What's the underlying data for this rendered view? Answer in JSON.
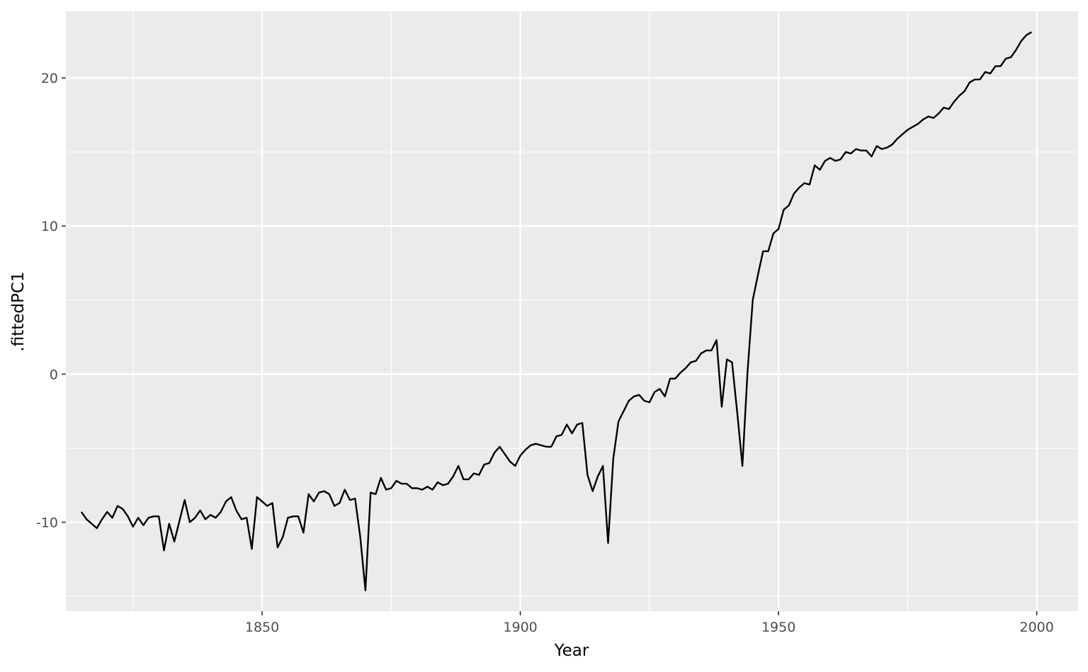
{
  "chart_data": {
    "type": "line",
    "title": "",
    "xlabel": "Year",
    "ylabel": ".fittedPC1",
    "xlim": [
      1812,
      2008
    ],
    "ylim": [
      -16,
      24.5
    ],
    "x_ticks": [
      1850,
      1900,
      1950,
      2000
    ],
    "y_ticks": [
      -10,
      0,
      10,
      20
    ],
    "x_tick_labels": [
      "1850",
      "1900",
      "1950",
      "2000"
    ],
    "y_tick_labels": [
      "-10",
      "0",
      "10",
      "20"
    ],
    "x_minor": [
      1825,
      1875,
      1925,
      1975
    ],
    "y_minor": [
      -15,
      -5,
      5,
      15
    ],
    "grid": true,
    "legend": "none",
    "colors": {
      "panel": "#ebebeb",
      "grid": "#ffffff",
      "line": "#000000",
      "tick_text": "#4d4d4d"
    },
    "series": [
      {
        "x": [
          1815,
          1816,
          1817,
          1818,
          1819,
          1820,
          1821,
          1822,
          1823,
          1824,
          1825,
          1826,
          1827,
          1828,
          1829,
          1830,
          1831,
          1832,
          1833,
          1834,
          1835,
          1836,
          1837,
          1838,
          1839,
          1840,
          1841,
          1842,
          1843,
          1844,
          1845,
          1846,
          1847,
          1848,
          1849,
          1850,
          1851,
          1852,
          1853,
          1854,
          1855,
          1856,
          1857,
          1858,
          1859,
          1860,
          1861,
          1862,
          1863,
          1864,
          1865,
          1866,
          1867,
          1868,
          1869,
          1870,
          1871,
          1872,
          1873,
          1874,
          1875,
          1876,
          1877,
          1878,
          1879,
          1880,
          1881,
          1882,
          1883,
          1884,
          1885,
          1886,
          1887,
          1888,
          1889,
          1890,
          1891,
          1892,
          1893,
          1894,
          1895,
          1896,
          1897,
          1898,
          1899,
          1900,
          1901,
          1902,
          1903,
          1904,
          1905,
          1906,
          1907,
          1908,
          1909,
          1910,
          1911,
          1912,
          1913,
          1914,
          1915,
          1916,
          1917,
          1918,
          1919,
          1920,
          1921,
          1922,
          1923,
          1924,
          1925,
          1926,
          1927,
          1928,
          1929,
          1930,
          1931,
          1932,
          1933,
          1934,
          1935,
          1936,
          1937,
          1938,
          1939,
          1940,
          1941,
          1942,
          1943,
          1944,
          1945,
          1946,
          1947,
          1948,
          1949,
          1950,
          1951,
          1952,
          1953,
          1954,
          1955,
          1956,
          1957,
          1958,
          1959,
          1960,
          1961,
          1962,
          1963,
          1964,
          1965,
          1966,
          1967,
          1968,
          1969,
          1970,
          1971,
          1972,
          1973,
          1974,
          1975,
          1976,
          1977,
          1978,
          1979,
          1980,
          1981,
          1982,
          1983,
          1984,
          1985,
          1986,
          1987,
          1988,
          1989,
          1990,
          1991,
          1992,
          1993,
          1994,
          1995,
          1996,
          1997,
          1998,
          1999
        ],
        "values": [
          -9.3,
          -9.8,
          -10.1,
          -10.4,
          -9.8,
          -9.3,
          -9.7,
          -8.9,
          -9.1,
          -9.6,
          -10.3,
          -9.7,
          -10.2,
          -9.7,
          -9.6,
          -9.6,
          -11.9,
          -10.1,
          -11.3,
          -9.9,
          -8.5,
          -10.0,
          -9.7,
          -9.2,
          -9.8,
          -9.5,
          -9.7,
          -9.3,
          -8.6,
          -8.3,
          -9.2,
          -9.8,
          -9.7,
          -11.8,
          -8.3,
          -8.6,
          -8.9,
          -8.7,
          -11.7,
          -11.0,
          -9.7,
          -9.6,
          -9.6,
          -10.7,
          -8.1,
          -8.6,
          -8.0,
          -7.9,
          -8.1,
          -8.9,
          -8.7,
          -7.8,
          -8.5,
          -8.4,
          -11.0,
          -14.6,
          -8.0,
          -8.1,
          -7.0,
          -7.8,
          -7.7,
          -7.2,
          -7.4,
          -7.4,
          -7.7,
          -7.7,
          -7.8,
          -7.6,
          -7.8,
          -7.3,
          -7.5,
          -7.4,
          -6.9,
          -6.2,
          -7.1,
          -7.1,
          -6.7,
          -6.8,
          -6.1,
          -6.0,
          -5.3,
          -4.9,
          -5.4,
          -5.9,
          -6.2,
          -5.5,
          -5.1,
          -4.8,
          -4.7,
          -4.8,
          -4.9,
          -4.9,
          -4.2,
          -4.1,
          -3.4,
          -4.0,
          -3.4,
          -3.3,
          -6.8,
          -7.9,
          -6.9,
          -6.2,
          -11.4,
          -5.7,
          -3.2,
          -2.5,
          -1.8,
          -1.5,
          -1.4,
          -1.8,
          -1.9,
          -1.2,
          -1.0,
          -1.5,
          -0.3,
          -0.3,
          0.1,
          0.4,
          0.8,
          0.9,
          1.4,
          1.6,
          1.6,
          2.3,
          -2.2,
          1.0,
          0.8,
          -2.6,
          -6.2,
          0.2,
          5.0,
          6.7,
          8.3,
          8.3,
          9.5,
          9.8,
          11.1,
          11.4,
          12.2,
          12.6,
          12.9,
          12.8,
          14.1,
          13.8,
          14.4,
          14.6,
          14.4,
          14.5,
          15.0,
          14.9,
          15.2,
          15.1,
          15.1,
          14.7,
          15.4,
          15.2,
          15.3,
          15.5,
          15.9,
          16.2,
          16.5,
          16.7,
          16.9,
          17.2,
          17.4,
          17.3,
          17.6,
          18.0,
          17.9,
          18.4,
          18.8,
          19.1,
          19.7,
          19.9,
          19.9,
          20.4,
          20.3,
          20.8,
          20.8,
          21.3,
          21.4,
          21.9,
          22.5,
          22.9,
          23.1
        ]
      }
    ]
  }
}
